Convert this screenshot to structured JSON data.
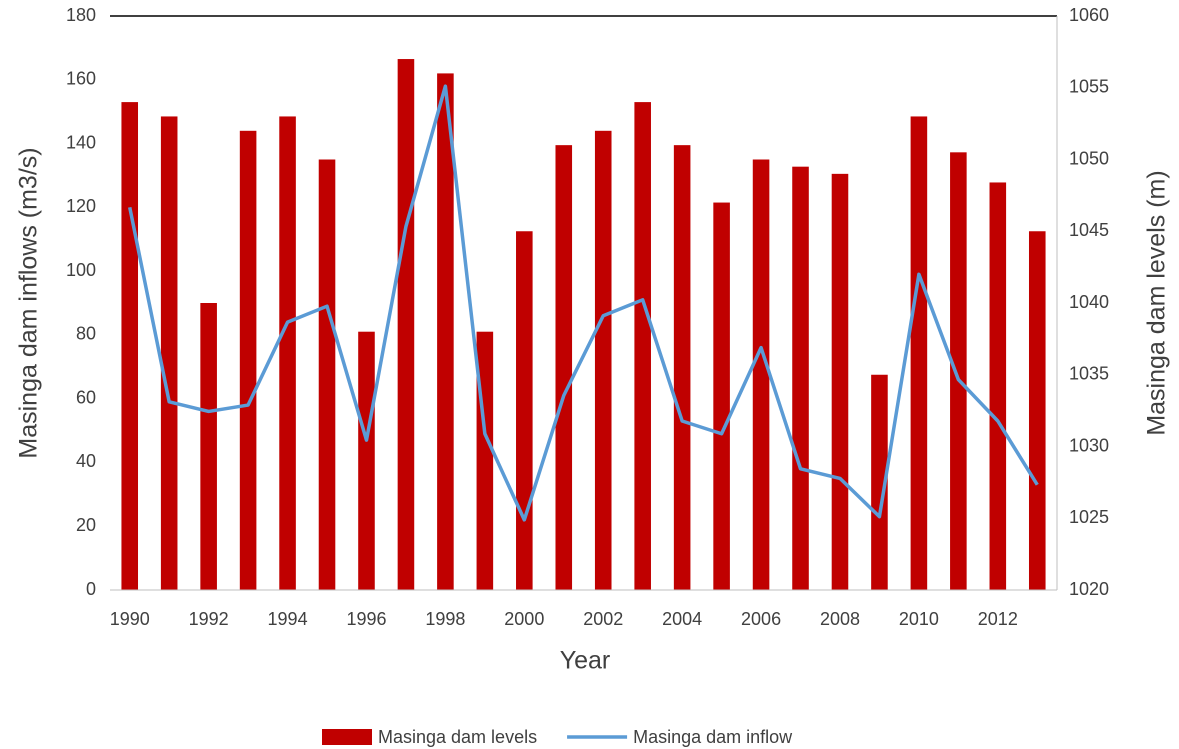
{
  "chart_data": {
    "type": "combo",
    "x_label": "Year",
    "y_label": "Masinga dam inflows (m3/s)",
    "y2_label": "Masinga dam levels (m)",
    "categories": [
      "1990",
      null,
      "1992",
      null,
      "1994",
      null,
      "1996",
      null,
      "1998",
      null,
      "2000",
      null,
      "2002",
      null,
      "2004",
      null,
      "2006",
      null,
      "2008",
      null,
      "2010",
      null,
      "2012",
      null
    ],
    "series": [
      {
        "name": "Masinga dam levels",
        "type": "bar",
        "axis": "y2",
        "color": "#c00000",
        "values": [
          1054,
          1053,
          1040,
          1052,
          1053,
          1050,
          1038,
          1057,
          1056,
          1038,
          1045,
          1051,
          1052,
          1054,
          1051,
          1047,
          1050,
          1049.5,
          1049,
          1035,
          1053,
          1050.5,
          1048.4,
          1045
        ]
      },
      {
        "name": "Masinga dam inflow",
        "type": "line",
        "color": "#5b9bd5",
        "values": [
          120,
          59,
          56,
          58,
          84,
          89,
          47,
          114,
          158,
          49,
          22,
          61,
          86,
          91,
          53,
          49,
          76,
          38,
          35,
          23,
          99,
          66,
          53,
          33
        ]
      }
    ],
    "ylim": [
      0,
      180
    ],
    "yticks": [
      0,
      20,
      40,
      60,
      80,
      100,
      120,
      140,
      160,
      180
    ],
    "y2lim": [
      1020,
      1060
    ],
    "y2ticks": [
      1020,
      1025,
      1030,
      1035,
      1040,
      1045,
      1050,
      1055,
      1060
    ],
    "legend": "bottom"
  }
}
